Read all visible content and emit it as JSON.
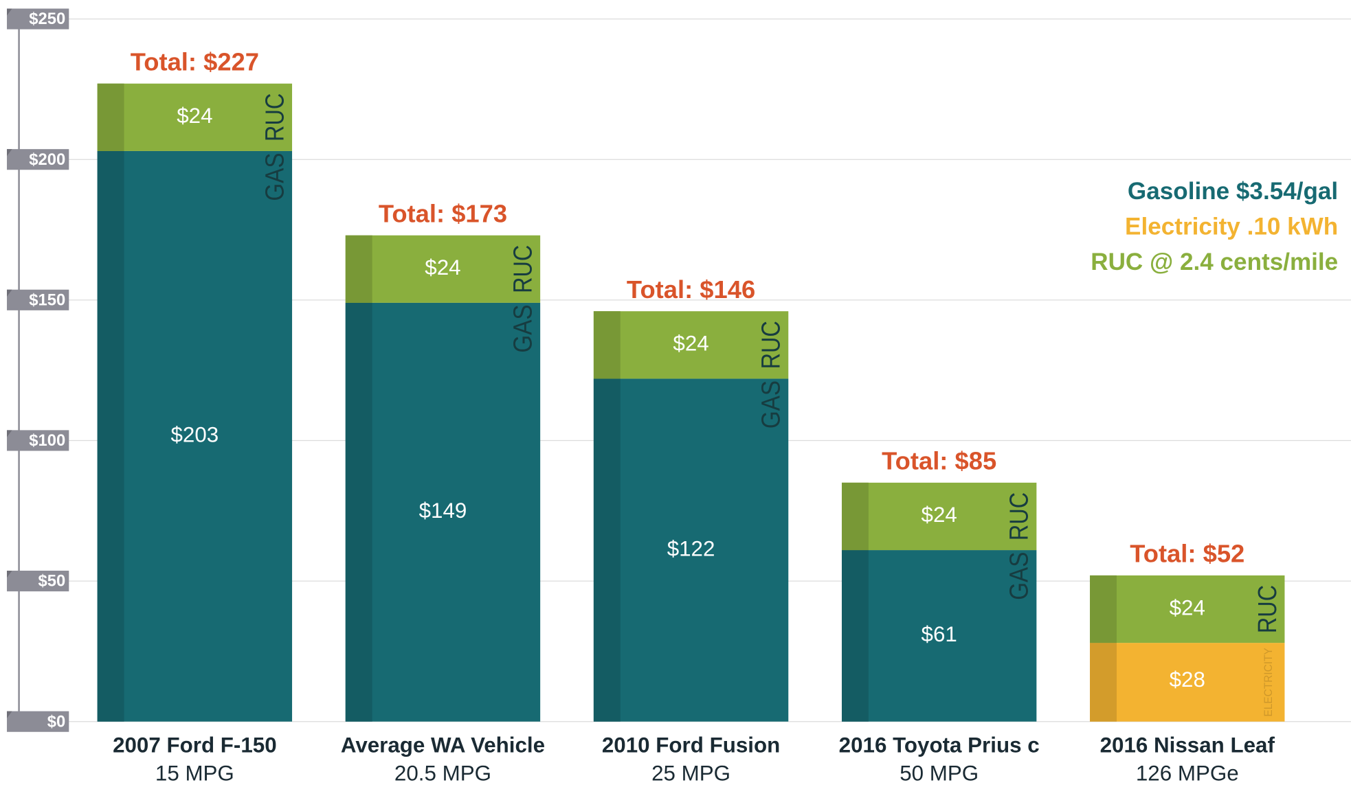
{
  "chart_data": {
    "type": "stacked_bar",
    "categories": [
      "2007 Ford F-150",
      "Average WA Vehicle",
      "2010 Ford Fusion",
      "2016 Toyota Prius c",
      "2016 Nissan Leaf"
    ],
    "category_sublabels": [
      "15 MPG",
      "20.5 MPG",
      "25 MPG",
      "50 MPG",
      "126 MPGe"
    ],
    "series": [
      {
        "name": "Gasoline $3.54/gal",
        "short_name": "GAS",
        "color": "#176a72",
        "values": [
          203,
          149,
          122,
          61,
          null
        ],
        "value_labels": [
          "$203",
          "$149",
          "$122",
          "$61",
          null
        ]
      },
      {
        "name": "Electricity .10 kWh",
        "short_name": "ELECTRICITY",
        "color": "#f3b331",
        "values": [
          null,
          null,
          null,
          null,
          28
        ],
        "value_labels": [
          null,
          null,
          null,
          null,
          "$28"
        ]
      },
      {
        "name": "RUC @ 2.4 cents/mile",
        "short_name": "RUC",
        "color": "#8aaf3e",
        "values": [
          24,
          24,
          24,
          24,
          24
        ],
        "value_labels": [
          "$24",
          "$24",
          "$24",
          "$24",
          "$24"
        ]
      }
    ],
    "totals": [
      227,
      173,
      146,
      85,
      52
    ],
    "total_labels": [
      "Total: $227",
      "Total: $173",
      "Total: $146",
      "Total: $85",
      "Total: $52"
    ],
    "total_color": "#d9542a",
    "ylim": [
      0,
      250
    ],
    "yticks": [
      {
        "value": 0,
        "label": "$0"
      },
      {
        "value": 50,
        "label": "$50"
      },
      {
        "value": 100,
        "label": "$100"
      },
      {
        "value": 150,
        "label": "$150"
      },
      {
        "value": 200,
        "label": "$200"
      },
      {
        "value": 250,
        "label": "$250"
      }
    ],
    "grid": true
  }
}
